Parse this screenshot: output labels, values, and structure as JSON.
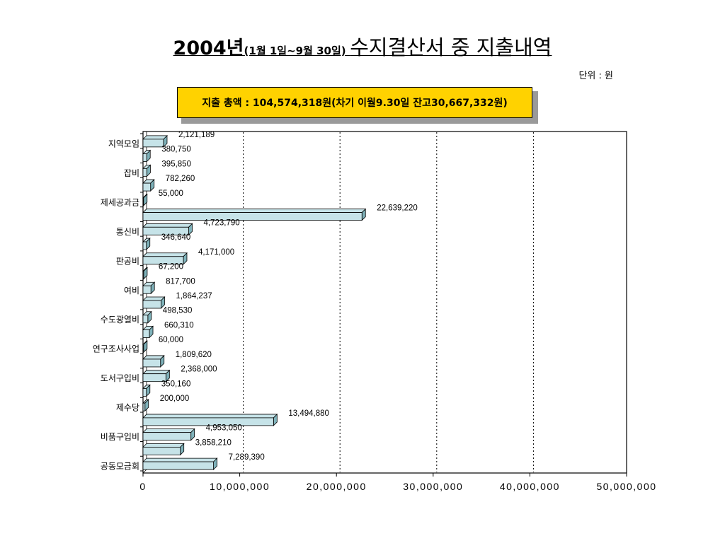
{
  "title": {
    "year": "2004년",
    "period": "(1월 1일~9월 30일)",
    "subject": "수지결산서 중 지출내역"
  },
  "unit_label": "단위 : 원",
  "summary_text": "지출 총액 : 104,574,318원(차기 이월9.30일 잔고30,667,332원)",
  "colors": {
    "bar": "#c6e3e8",
    "bar_side": "#7fb2ba",
    "summary_bg": "#ffd200"
  },
  "chart_data": {
    "type": "bar",
    "orientation": "horizontal",
    "bar_style": "3d",
    "xlim": [
      0,
      50000000
    ],
    "xticks": [
      "0",
      "10,000,000",
      "20,000,000",
      "30,000,000",
      "40,000,000",
      "50,000,000"
    ],
    "grid": "vertical dotted",
    "category_labels": [
      "지역모임",
      "잡비",
      "제세공과금",
      "통신비",
      "판공비",
      "여비",
      "수도광열비",
      "연구조사사업",
      "도서구입비",
      "제수당",
      "비품구입비",
      "공동모금회"
    ],
    "values": [
      2121189,
      380750,
      395850,
      782260,
      55000,
      22639220,
      4723790,
      346640,
      4171000,
      67200,
      817700,
      1864237,
      498530,
      660310,
      60000,
      1809620,
      2368000,
      350160,
      200000,
      13494880,
      4953050,
      3858210,
      7289390
    ],
    "value_labels": [
      "2,121,189",
      "380,750",
      "395,850",
      "782,260",
      "55,000",
      "22,639,220",
      "4,723,790",
      "346,640",
      "4,171,000",
      "67,200",
      "817,700",
      "1,864,237",
      "498,530",
      "660,310",
      "60,000",
      "1,809,620",
      "2,368,000",
      "350,160",
      "200,000",
      "13,494,880",
      "4,953,050",
      "3,858,210",
      "7,289,390"
    ]
  }
}
